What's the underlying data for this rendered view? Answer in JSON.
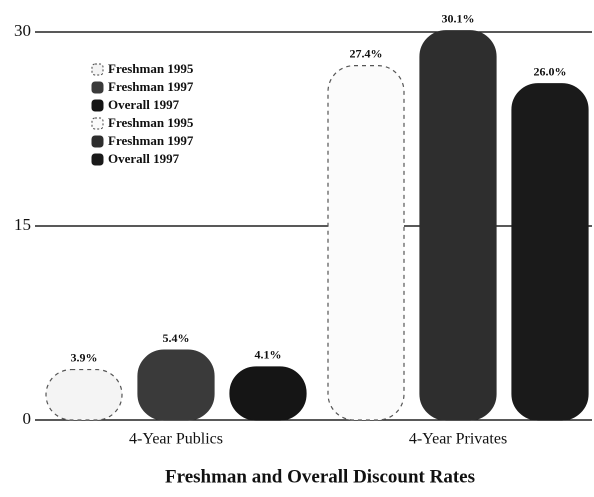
{
  "chart_data": {
    "type": "bar",
    "title": "Freshman and Overall Discount Rates",
    "categories": [
      "4-Year Publics",
      "4-Year Privates"
    ],
    "series": [
      {
        "name": "Freshman 1995",
        "color": "#f4f4f4",
        "values": [
          3.9,
          null
        ],
        "value_labels": [
          "3.9%",
          null
        ]
      },
      {
        "name": "Freshman 1997",
        "color": "#3a3a3a",
        "values": [
          5.4,
          null
        ],
        "value_labels": [
          "5.4%",
          null
        ]
      },
      {
        "name": "Overall 1997",
        "color": "#151515",
        "values": [
          4.1,
          null
        ],
        "value_labels": [
          "4.1%",
          null
        ]
      },
      {
        "name": "Freshman 1995",
        "color": "#fbfbfb",
        "values": [
          null,
          27.4
        ],
        "value_labels": [
          null,
          "27.4%"
        ]
      },
      {
        "name": "Freshman 1997",
        "color": "#2e2e2e",
        "values": [
          null,
          30.1
        ],
        "value_labels": [
          null,
          "30.1%"
        ]
      },
      {
        "name": "Overall 1997",
        "color": "#1a1a1a",
        "values": [
          null,
          26.0
        ],
        "value_labels": [
          null,
          "26.0%"
        ]
      }
    ],
    "ylim": [
      0,
      30
    ],
    "yticks": [
      0,
      15,
      30
    ],
    "grid": true
  }
}
